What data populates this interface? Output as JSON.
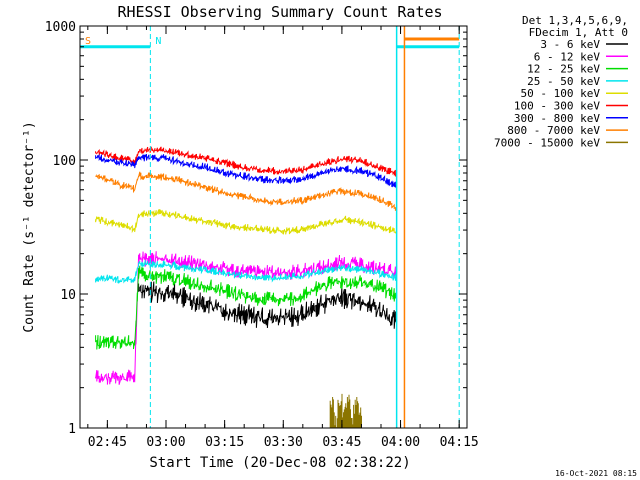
{
  "chart_data": {
    "type": "line",
    "title": "RHESSI Observing Summary Count Rates",
    "xlabel": "Start Time (20-Dec-08 02:38:22)",
    "ylabel": "Count Rate (s⁻¹ detector⁻¹)",
    "y_scale": "log",
    "ylim": [
      1,
      1000
    ],
    "xlim": [
      "02:38",
      "04:17"
    ],
    "x_ticks": [
      "02:45",
      "03:00",
      "03:15",
      "03:30",
      "03:45",
      "04:00",
      "04:15"
    ],
    "y_ticks": [
      "1",
      "10",
      "100",
      "1000"
    ],
    "timestamp": "16-Oct-2021 08:15",
    "legend_header": [
      "Det 1,3,4,5,6,9,",
      "FDecim 1, Att 0"
    ],
    "legend_position": "right",
    "markers": [
      {
        "time": "02:38",
        "label": "S",
        "color": "#ff7f00"
      },
      {
        "time": "02:56",
        "label": "N",
        "color": "#00e5ee"
      },
      {
        "time": "04:15",
        "label": "",
        "color": "#00e5ee"
      }
    ],
    "state_bars": [
      {
        "name": "night",
        "color": "#00e5ee",
        "from": "02:38",
        "to": "02:56",
        "level": 700
      },
      {
        "name": "night",
        "color": "#00e5ee",
        "from": "03:59",
        "to": "04:15",
        "level": 700
      },
      {
        "name": "saa",
        "color": "#ff7f00",
        "from": "04:01",
        "to": "04:15",
        "level": 800
      }
    ],
    "solid_vlines": [
      {
        "time": "03:59",
        "color": "#00e5ee"
      },
      {
        "time": "04:01",
        "color": "#ff7f00"
      }
    ],
    "series": [
      {
        "name": "3 - 6 keV",
        "color": "#000000",
        "x": [
          "02:42",
          "02:45",
          "02:48",
          "02:52",
          "02:53",
          "02:55",
          "03:00",
          "03:05",
          "03:10",
          "03:15",
          "03:20",
          "03:25",
          "03:30",
          "03:35",
          "03:40",
          "03:45",
          "03:50",
          "03:55",
          "03:59"
        ],
        "y": [
          null,
          null,
          null,
          null,
          12,
          11,
          11,
          10,
          9,
          8,
          7.5,
          7,
          7,
          7.5,
          9,
          10,
          9.5,
          8,
          6.5
        ]
      },
      {
        "name": "6 - 12 keV",
        "color": "#ff00ff",
        "x": [
          "02:42",
          "02:45",
          "02:48",
          "02:52",
          "02:53",
          "02:55",
          "03:00",
          "03:05",
          "03:10",
          "03:15",
          "03:20",
          "03:25",
          "03:30",
          "03:35",
          "03:40",
          "03:45",
          "03:50",
          "03:55",
          "03:59"
        ],
        "y": [
          2.5,
          2.5,
          2.5,
          2.5,
          19,
          19,
          19,
          18,
          17,
          16,
          15.5,
          15,
          15,
          15.5,
          16.5,
          18,
          17,
          16,
          15
        ]
      },
      {
        "name": "12 - 25 keV",
        "color": "#00dd00",
        "x": [
          "02:42",
          "02:45",
          "02:48",
          "02:52",
          "02:53",
          "02:55",
          "03:00",
          "03:05",
          "03:10",
          "03:15",
          "03:20",
          "03:25",
          "03:30",
          "03:35",
          "03:40",
          "03:45",
          "03:50",
          "03:55",
          "03:59"
        ],
        "y": [
          4.5,
          4.5,
          4.5,
          4.5,
          15,
          14,
          14,
          13,
          12,
          11,
          10,
          9.5,
          9.5,
          10,
          12,
          13,
          12.5,
          11.5,
          10
        ]
      },
      {
        "name": "25 - 50 keV",
        "color": "#00e5ee",
        "x": [
          "02:42",
          "02:45",
          "02:48",
          "02:52",
          "02:53",
          "02:55",
          "03:00",
          "03:05",
          "03:10",
          "03:15",
          "03:20",
          "03:25",
          "03:30",
          "03:35",
          "03:40",
          "03:45",
          "03:50",
          "03:55",
          "03:59"
        ],
        "y": [
          13,
          13.5,
          13,
          13,
          17,
          17,
          17,
          16,
          15.5,
          14.5,
          14,
          13.5,
          13.5,
          14,
          15,
          16,
          15.5,
          14.5,
          13.5
        ]
      },
      {
        "name": "50 - 100 keV",
        "color": "#dddd00",
        "x": [
          "02:42",
          "02:45",
          "02:48",
          "02:52",
          "02:53",
          "02:55",
          "03:00",
          "03:05",
          "03:10",
          "03:15",
          "03:20",
          "03:25",
          "03:30",
          "03:35",
          "03:40",
          "03:45",
          "03:50",
          "03:55",
          "03:59"
        ],
        "y": [
          37,
          35,
          34,
          31,
          40,
          41,
          41,
          38,
          36,
          33,
          32,
          31,
          30,
          31,
          34,
          37,
          35,
          32,
          30
        ]
      },
      {
        "name": "100 - 300 keV",
        "color": "#ff0000",
        "x": [
          "02:42",
          "02:45",
          "02:48",
          "02:52",
          "02:53",
          "02:55",
          "03:00",
          "03:05",
          "03:10",
          "03:15",
          "03:20",
          "03:25",
          "03:30",
          "03:35",
          "03:40",
          "03:45",
          "03:50",
          "03:55",
          "03:59"
        ],
        "y": [
          118,
          112,
          106,
          100,
          120,
          120,
          120,
          112,
          106,
          97,
          90,
          85,
          84,
          86,
          96,
          104,
          100,
          88,
          80
        ]
      },
      {
        "name": "300 - 800 keV",
        "color": "#0000ff",
        "x": [
          "02:42",
          "02:45",
          "02:48",
          "02:52",
          "02:53",
          "02:55",
          "03:00",
          "03:05",
          "03:10",
          "03:15",
          "03:20",
          "03:25",
          "03:30",
          "03:35",
          "03:40",
          "03:45",
          "03:50",
          "03:55",
          "03:59"
        ],
        "y": [
          108,
          103,
          98,
          94,
          106,
          106,
          105,
          97,
          90,
          82,
          77,
          73,
          72,
          74,
          82,
          88,
          84,
          75,
          65
        ]
      },
      {
        "name": "800 - 7000 keV",
        "color": "#ff7f00",
        "x": [
          "02:42",
          "02:45",
          "02:48",
          "02:52",
          "02:53",
          "02:55",
          "03:00",
          "03:05",
          "03:10",
          "03:15",
          "03:20",
          "03:25",
          "03:30",
          "03:35",
          "03:40",
          "03:45",
          "03:50",
          "03:55",
          "03:59"
        ],
        "y": [
          78,
          72,
          67,
          62,
          78,
          77,
          76,
          70,
          64,
          58,
          54,
          51,
          50,
          51,
          56,
          60,
          57,
          51,
          45
        ]
      },
      {
        "name": "7000 - 15000 keV",
        "color": "#8b7500",
        "x": [
          "03:42",
          "03:43",
          "03:44",
          "03:45",
          "03:46",
          "03:47",
          "03:48",
          "03:49"
        ],
        "y": [
          1.6,
          1.2,
          1.9,
          1.4,
          1.8,
          1.3,
          1.7,
          1.5
        ]
      }
    ]
  }
}
